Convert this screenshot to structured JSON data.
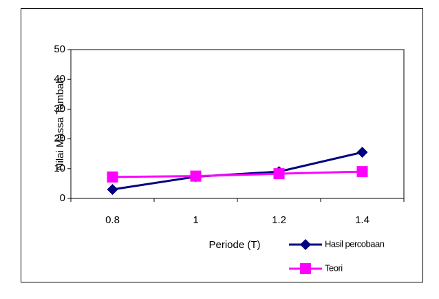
{
  "chart_data": {
    "type": "line",
    "x_label": "Periode (T)",
    "y_label": "Nilai Massa Tambah",
    "categories": [
      "0.8",
      "1",
      "1.2",
      "1.4"
    ],
    "series": [
      {
        "name": "Hasil percobaan",
        "color": "#000080",
        "marker": "diamond",
        "values": [
          3,
          7.3,
          9,
          15.5
        ]
      },
      {
        "name": "Teori",
        "color": "#ff00ff",
        "marker": "square",
        "values": [
          7.2,
          7.5,
          8.3,
          9
        ]
      }
    ],
    "ylim": [
      0,
      50
    ],
    "yticks": [
      0,
      10,
      20,
      30,
      40,
      50
    ],
    "grid": false
  }
}
